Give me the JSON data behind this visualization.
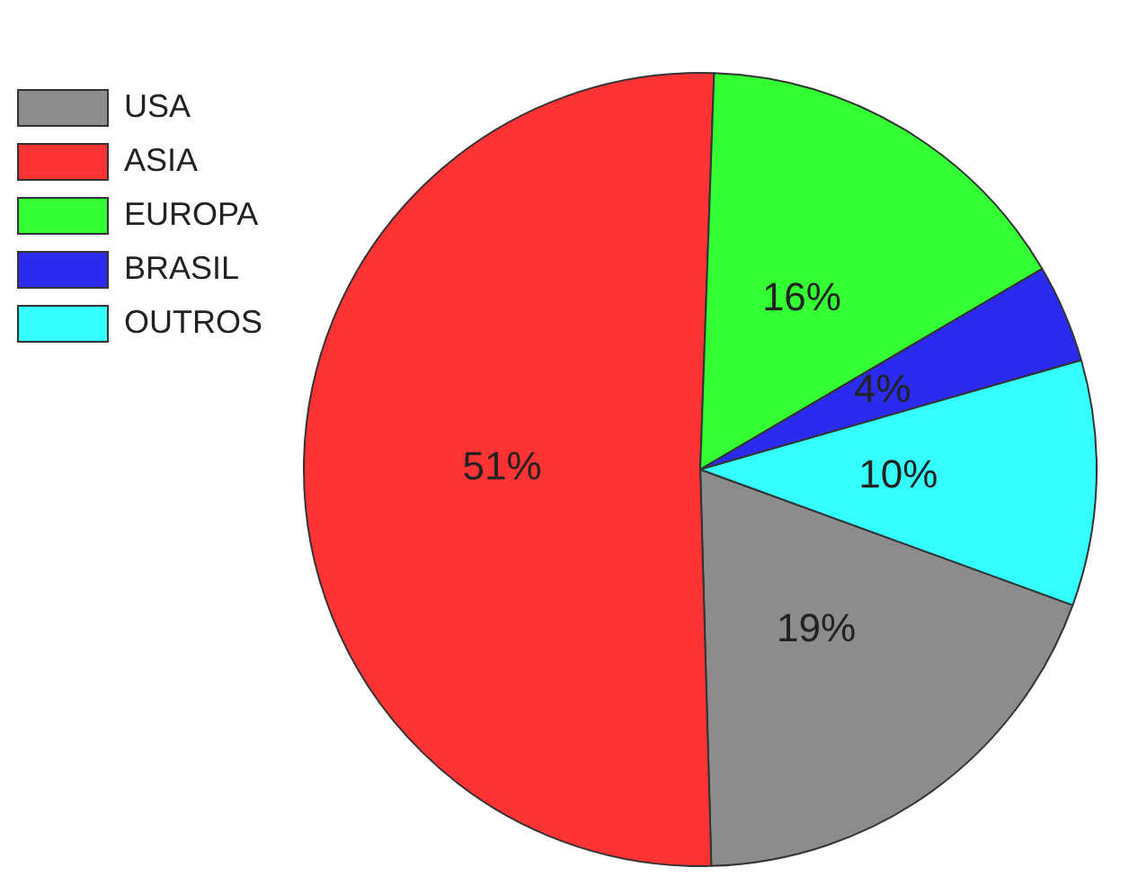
{
  "chart_data": {
    "type": "pie",
    "categories": [
      "USA",
      "ASIA",
      "EUROPA",
      "BRASIL",
      "OUTROS"
    ],
    "values": [
      19,
      51,
      16,
      4,
      10
    ],
    "value_labels": [
      "19%",
      "51%",
      "16%",
      "4%",
      "10%"
    ],
    "colors": [
      "#8c8c8c",
      "#ff3333",
      "#33ff33",
      "#2b2bf0",
      "#33ffff"
    ],
    "legend": "top left"
  }
}
